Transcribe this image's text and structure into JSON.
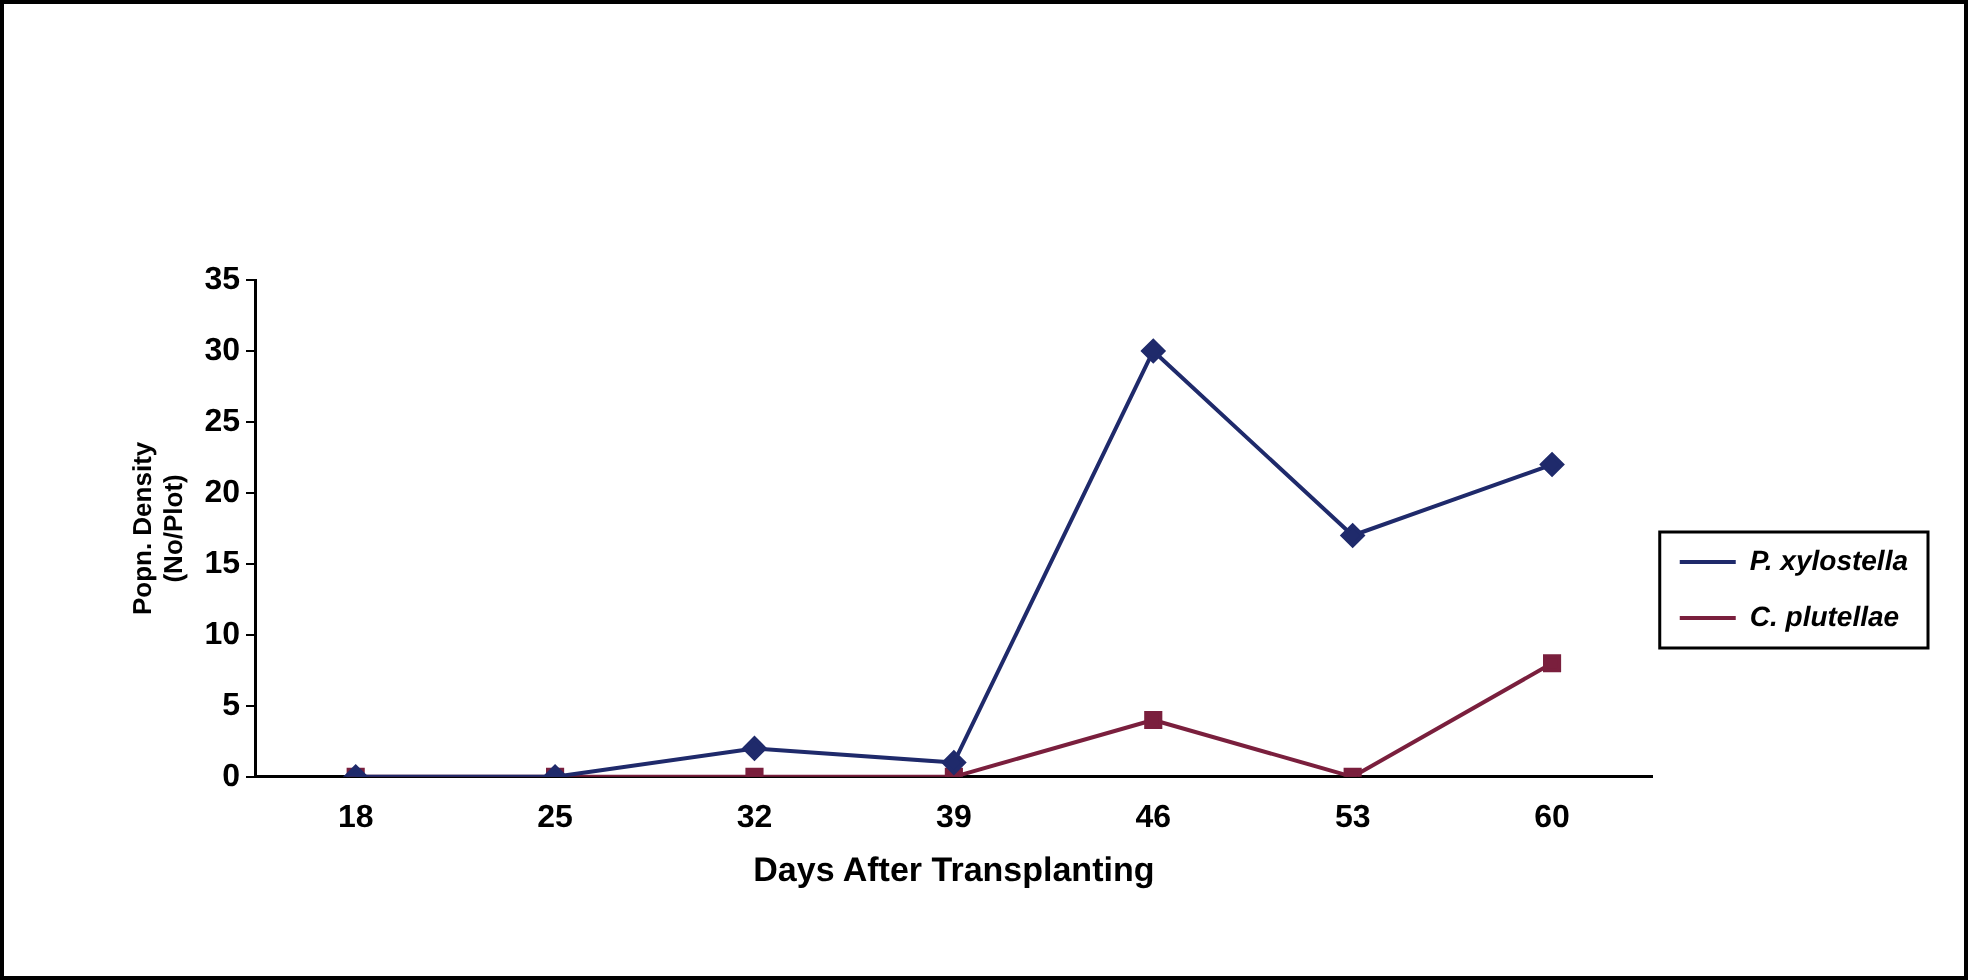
{
  "chart_data": {
    "type": "line",
    "xlabel": "Days After Transplanting",
    "ylabel": "Popn. Density\n(No/Plot)",
    "categories": [
      "18",
      "25",
      "32",
      "39",
      "46",
      "53",
      "60"
    ],
    "series": [
      {
        "name": "P. xylostella",
        "color": "#1f2a6b",
        "marker": "diamond",
        "values": [
          0,
          0,
          2,
          1,
          30,
          17,
          22
        ]
      },
      {
        "name": "C. plutellae",
        "color": "#7a1f3d",
        "marker": "square",
        "values": [
          0,
          0,
          0,
          0,
          4,
          0,
          8
        ]
      }
    ],
    "ylim": [
      0,
      35
    ],
    "yticks": [
      0,
      5,
      10,
      15,
      20,
      25,
      30,
      35
    ],
    "grid": false,
    "legend": "right"
  }
}
